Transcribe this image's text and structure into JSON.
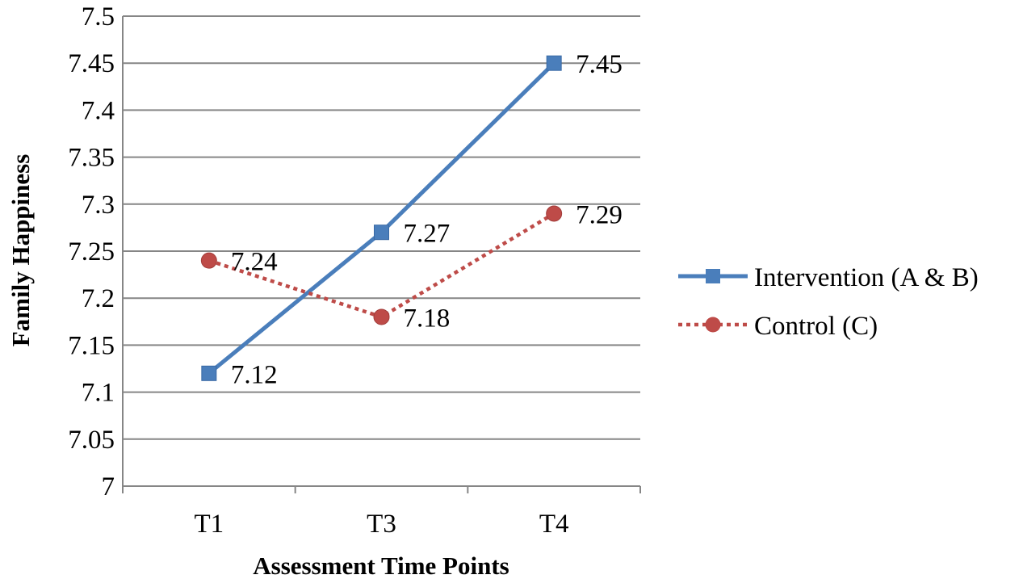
{
  "chart_data": {
    "type": "line",
    "title": "",
    "xlabel": "Assessment Time Points",
    "ylabel": "Family Happiness",
    "categories": [
      "T1",
      "T3",
      "T4"
    ],
    "ylim": [
      7,
      7.5
    ],
    "ytick_step": 0.05,
    "yticks": [
      "7",
      "7.05",
      "7.1",
      "7.15",
      "7.2",
      "7.25",
      "7.3",
      "7.35",
      "7.4",
      "7.45",
      "7.5"
    ],
    "grid": true,
    "legend_position": "right",
    "series": [
      {
        "name": "Intervention (A & B)",
        "values": [
          7.12,
          7.27,
          7.45
        ],
        "labels": [
          "7.12",
          "7.27",
          "7.45"
        ],
        "color": "#4a7ebb",
        "line_style": "solid",
        "marker": "square"
      },
      {
        "name": "Control (C)",
        "values": [
          7.24,
          7.18,
          7.29
        ],
        "labels": [
          "7.24",
          "7.18",
          "7.29"
        ],
        "color": "#be4b48",
        "line_style": "dotted",
        "marker": "circle"
      }
    ],
    "gridline_color": "#868686",
    "axis_color": "#868686"
  }
}
